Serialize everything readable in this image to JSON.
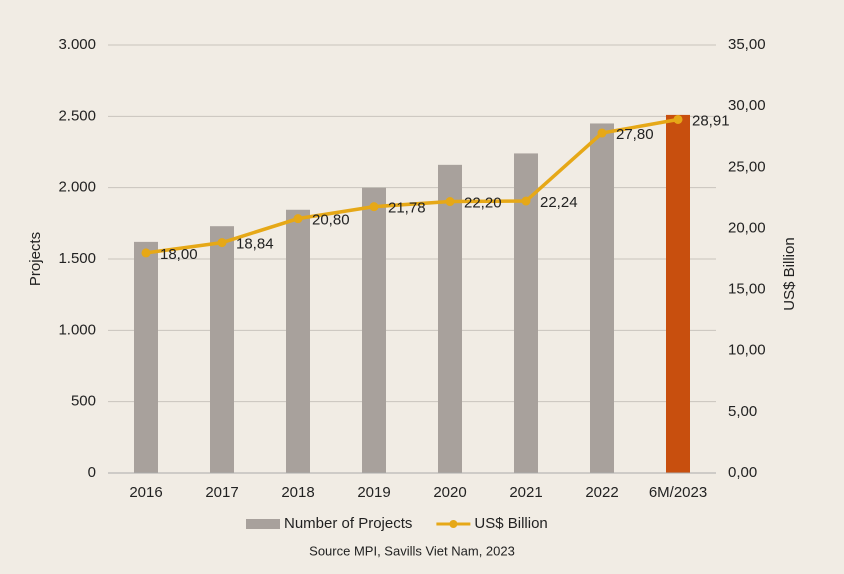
{
  "chart_data": {
    "type": "bar_line",
    "categories": [
      "2016",
      "2017",
      "2018",
      "2019",
      "2020",
      "2021",
      "2022",
      "6M/2023"
    ],
    "series": [
      {
        "name": "Number of Projects",
        "type": "bar",
        "color": "#a8a19c",
        "colors": [
          "#a8a19c",
          "#a8a19c",
          "#a8a19c",
          "#a8a19c",
          "#a8a19c",
          "#a8a19c",
          "#a8a19c",
          "#c84f0e"
        ],
        "values": [
          1620,
          1730,
          1845,
          2000,
          2160,
          2240,
          2450,
          2510
        ]
      },
      {
        "name": "US$ Billion",
        "type": "line",
        "axis": "y2",
        "color": "#e6a817",
        "values": [
          18.0,
          18.84,
          20.8,
          21.78,
          22.2,
          22.24,
          27.8,
          28.91
        ],
        "value_labels": [
          "18,00",
          "18,84",
          "20,80",
          "21,78",
          "22,20",
          "22,24",
          "27,80",
          "28,91"
        ]
      }
    ],
    "ylabel": "Projects",
    "y2label": "US$ Billion",
    "ylim": [
      0,
      3000
    ],
    "yticks": [
      0,
      500,
      {
        "value": 1000,
        "label": "1.000"
      },
      {
        "value": 1500,
        "label": "1.500"
      },
      {
        "value": 2000,
        "label": "2.000"
      },
      {
        "value": 2500,
        "label": "2.500"
      },
      {
        "value": 3000,
        "label": "3.000"
      }
    ],
    "y2lim": [
      0,
      35
    ],
    "y2ticks": [
      {
        "value": 0,
        "label": "0,00"
      },
      {
        "value": 5,
        "label": "5,00"
      },
      {
        "value": 10,
        "label": "10,00"
      },
      {
        "value": 15,
        "label": "15,00"
      },
      {
        "value": 20,
        "label": "20,00"
      },
      {
        "value": 25,
        "label": "25,00"
      },
      {
        "value": 30,
        "label": "30,00"
      },
      {
        "value": 35,
        "label": "35,00"
      }
    ],
    "grid": true,
    "legend": "bottom",
    "source": "Source MPI, Savills Viet Nam, 2023"
  }
}
